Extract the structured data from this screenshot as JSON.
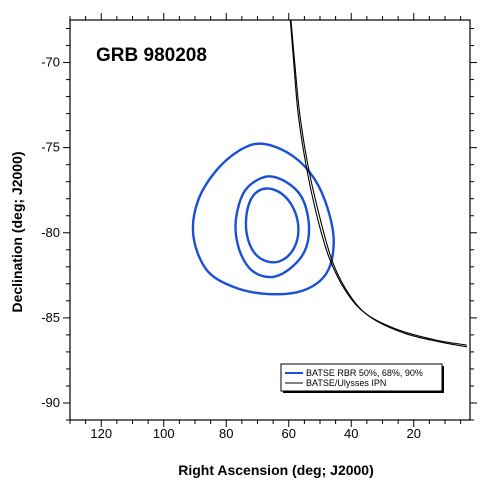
{
  "chart_data": {
    "type": "line",
    "title": "GRB 980208",
    "xlabel": "Right Ascension (deg; J2000)",
    "ylabel": "Declination (deg; J2000)",
    "xlim": [
      130,
      2
    ],
    "ylim": [
      -91,
      -67.5
    ],
    "x_reversed": true,
    "grid": false,
    "legend_position": "bottom-right",
    "x_ticks": [
      120,
      100,
      80,
      60,
      40,
      20
    ],
    "y_ticks": [
      -70,
      -75,
      -80,
      -85,
      -90
    ],
    "colors": {
      "contours": "#1a4fd6",
      "ipn": "#000000"
    },
    "contours": [
      {
        "level": "50%",
        "points": [
          [
            67.2,
            -77.4
          ],
          [
            62.3,
            -77.7
          ],
          [
            58.4,
            -78.6
          ],
          [
            56.9,
            -79.8
          ],
          [
            58.3,
            -80.9
          ],
          [
            62.0,
            -81.6
          ],
          [
            66.6,
            -81.7
          ],
          [
            70.9,
            -81.2
          ],
          [
            73.4,
            -80.1
          ],
          [
            73.4,
            -78.8
          ],
          [
            71.3,
            -77.8
          ],
          [
            67.2,
            -77.4
          ]
        ]
      },
      {
        "level": "68%",
        "points": [
          [
            67.2,
            -76.7
          ],
          [
            61.0,
            -77.0
          ],
          [
            55.9,
            -77.9
          ],
          [
            53.6,
            -79.4
          ],
          [
            54.5,
            -80.9
          ],
          [
            58.9,
            -82.0
          ],
          [
            65.4,
            -82.6
          ],
          [
            71.9,
            -82.2
          ],
          [
            76.0,
            -80.9
          ],
          [
            76.9,
            -79.2
          ],
          [
            73.9,
            -77.5
          ],
          [
            67.2,
            -76.7
          ]
        ]
      },
      {
        "level": "90%",
        "points": [
          [
            67.2,
            -74.8
          ],
          [
            58.6,
            -75.5
          ],
          [
            51.9,
            -76.8
          ],
          [
            47.5,
            -78.6
          ],
          [
            45.6,
            -80.6
          ],
          [
            48.0,
            -82.4
          ],
          [
            55.5,
            -83.4
          ],
          [
            66.5,
            -83.6
          ],
          [
            77.4,
            -83.2
          ],
          [
            86.2,
            -82.2
          ],
          [
            90.5,
            -80.2
          ],
          [
            89.0,
            -78.1
          ],
          [
            82.5,
            -76.2
          ],
          [
            74.2,
            -75.0
          ],
          [
            67.2,
            -74.8
          ]
        ]
      }
    ],
    "ipn_annulus": [
      {
        "edge": "outer",
        "points": [
          [
            59.5,
            -67.5
          ],
          [
            58.4,
            -70.0
          ],
          [
            57.0,
            -73.0
          ],
          [
            54.5,
            -76.0
          ],
          [
            51.0,
            -79.0
          ],
          [
            47.0,
            -81.5
          ],
          [
            41.5,
            -83.5
          ],
          [
            35.0,
            -84.8
          ],
          [
            25.0,
            -85.7
          ],
          [
            13.0,
            -86.3
          ],
          [
            3.0,
            -86.6
          ]
        ]
      },
      {
        "edge": "inner",
        "points": [
          [
            59.3,
            -67.5
          ],
          [
            58.1,
            -70.0
          ],
          [
            56.5,
            -73.0
          ],
          [
            53.9,
            -76.0
          ],
          [
            50.2,
            -79.0
          ],
          [
            45.8,
            -81.8
          ],
          [
            40.0,
            -83.8
          ],
          [
            33.5,
            -85.0
          ],
          [
            23.0,
            -85.9
          ],
          [
            12.0,
            -86.4
          ],
          [
            3.0,
            -86.7
          ]
        ]
      }
    ],
    "series": [
      {
        "name": "BATSE RBR 50%, 68%, 90%",
        "color": "#1a4fd6"
      },
      {
        "name": "BATSE/Ulysses IPN",
        "color": "#000000"
      }
    ]
  }
}
